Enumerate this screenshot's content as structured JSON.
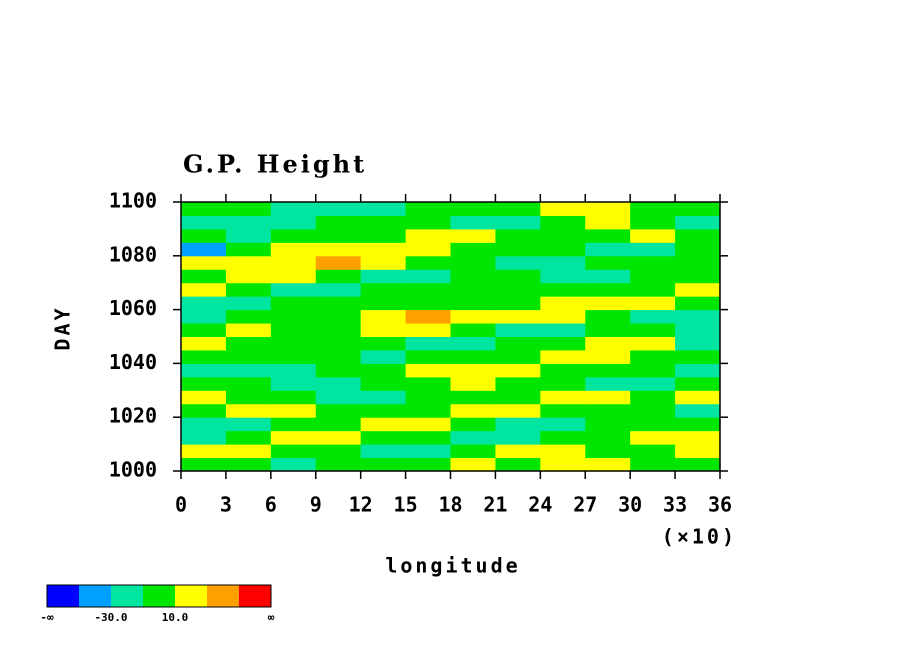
{
  "chart_data": {
    "type": "heatmap",
    "title": "G.P. Height",
    "xlabel": "longitude",
    "ylabel": "DAY",
    "x_scale_label": "(×10)",
    "xlim": [
      0,
      36
    ],
    "xticks": [
      0,
      3,
      6,
      9,
      12,
      15,
      18,
      21,
      24,
      27,
      30,
      33,
      36
    ],
    "ylim": [
      1000,
      1100
    ],
    "yticks": [
      1000,
      1020,
      1040,
      1060,
      1080,
      1100
    ],
    "colorbar": {
      "levels": [
        -50,
        -30,
        -10,
        10,
        30,
        50
      ],
      "colors": [
        "#0000ff",
        "#00a0ff",
        "#00e6a0",
        "#00e600",
        "#ffff00",
        "#ffa000",
        "#ff0000"
      ],
      "ticks": [
        {
          "value": -30,
          "label": "-30.0"
        },
        {
          "value": 10,
          "label": "10.0"
        }
      ],
      "min_label": "-∞",
      "max_label": "∞"
    },
    "z": [
      [
        0,
        0,
        -20,
        0,
        0,
        0,
        20,
        0,
        20,
        20,
        0,
        0
      ],
      [
        20,
        20,
        0,
        0,
        -20,
        -20,
        0,
        20,
        20,
        0,
        0,
        20
      ],
      [
        -20,
        0,
        20,
        20,
        0,
        0,
        -20,
        -20,
        0,
        0,
        20,
        20
      ],
      [
        -20,
        -20,
        0,
        0,
        20,
        20,
        0,
        -20,
        -20,
        0,
        0,
        0
      ],
      [
        0,
        20,
        20,
        0,
        0,
        0,
        20,
        20,
        0,
        0,
        0,
        -20
      ],
      [
        20,
        0,
        0,
        -20,
        -20,
        0,
        0,
        0,
        20,
        20,
        0,
        20
      ],
      [
        0,
        0,
        -20,
        -20,
        0,
        0,
        20,
        0,
        0,
        -20,
        -20,
        0
      ],
      [
        -20,
        -20,
        -20,
        0,
        0,
        20,
        20,
        20,
        0,
        0,
        0,
        -20
      ],
      [
        0,
        0,
        0,
        0,
        -20,
        0,
        0,
        0,
        20,
        20,
        0,
        0
      ],
      [
        20,
        0,
        0,
        0,
        0,
        -20,
        -20,
        0,
        0,
        20,
        20,
        -20
      ],
      [
        0,
        20,
        0,
        0,
        20,
        20,
        0,
        -20,
        -20,
        0,
        0,
        -20
      ],
      [
        -20,
        0,
        0,
        0,
        20,
        40,
        20,
        20,
        20,
        0,
        -20,
        -20
      ],
      [
        -20,
        -20,
        0,
        0,
        0,
        0,
        0,
        0,
        20,
        20,
        20,
        0
      ],
      [
        20,
        0,
        -20,
        -20,
        0,
        0,
        0,
        0,
        0,
        0,
        0,
        20
      ],
      [
        0,
        20,
        20,
        0,
        -20,
        -20,
        0,
        0,
        -20,
        -20,
        0,
        0
      ],
      [
        20,
        20,
        20,
        40,
        20,
        0,
        0,
        -20,
        -20,
        0,
        0,
        0
      ],
      [
        -40,
        0,
        20,
        20,
        20,
        20,
        0,
        0,
        0,
        -20,
        -20,
        0
      ],
      [
        0,
        -20,
        0,
        0,
        0,
        20,
        20,
        0,
        0,
        0,
        20,
        0
      ],
      [
        -20,
        -20,
        -20,
        0,
        0,
        0,
        -20,
        -20,
        0,
        20,
        0,
        -20
      ],
      [
        0,
        0,
        -20,
        -20,
        -20,
        0,
        0,
        0,
        20,
        20,
        0,
        0
      ]
    ]
  }
}
